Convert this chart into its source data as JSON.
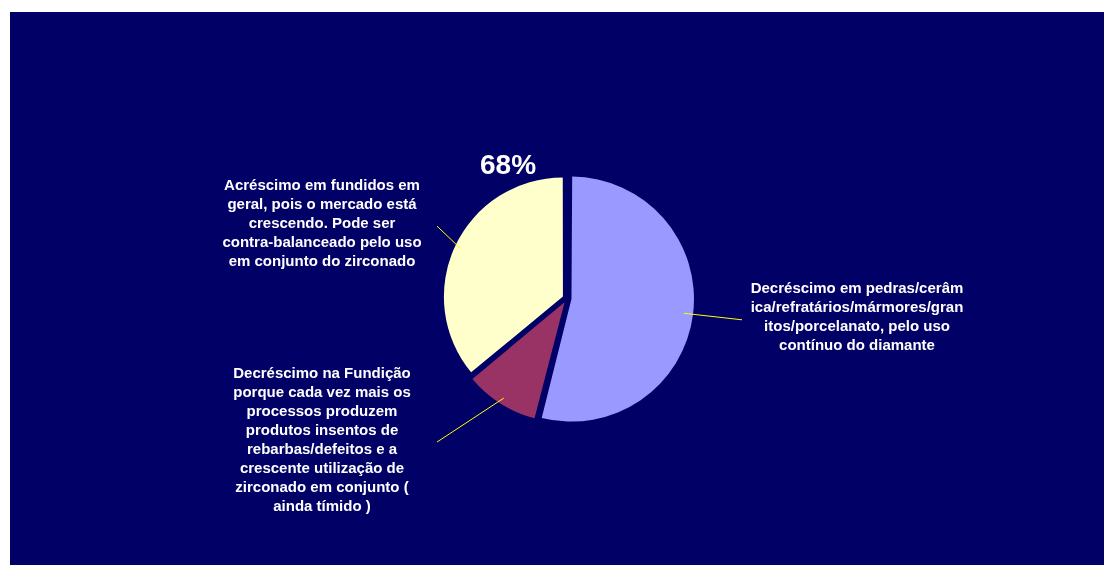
{
  "chart_data": {
    "type": "pie",
    "categories": [
      "Decréscimo em pedras/cerâmica/refratários/mármores/granitos/porcelanato, pelo uso contínuo do diamante",
      "Decréscimo na Fundição porque cada vez mais os processos produzem produtos insentos de rebarbas/defeitos e a crescente utilização de zirconado em conjunto ( ainda tímido )",
      "Acréscimo em fundidos em geral, pois o mercado está crescendo. Pode ser contra-balanceado pelo uso em conjunto do zirconado"
    ],
    "values": [
      54,
      10,
      36
    ],
    "colors": [
      "#9999ff",
      "#993366",
      "#ffffcc"
    ],
    "annotations": [
      "68%"
    ],
    "legend": false
  }
}
